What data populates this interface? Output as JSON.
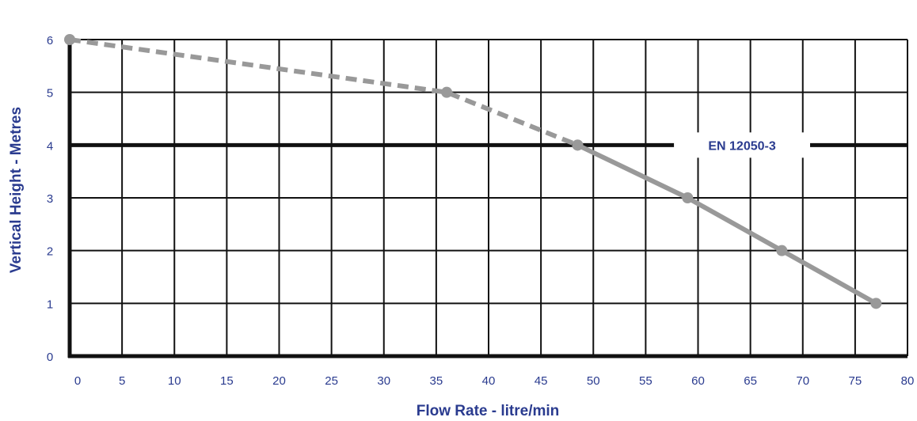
{
  "chart_data": {
    "type": "line",
    "title": "",
    "xlabel": "Flow Rate - litre/min",
    "ylabel": "Vertical Height - Metres",
    "xlim": [
      0,
      80
    ],
    "ylim": [
      0,
      6
    ],
    "x_ticks": [
      "0",
      "5",
      "10",
      "15",
      "20",
      "25",
      "30",
      "35",
      "40",
      "45",
      "50",
      "55",
      "60",
      "65",
      "70",
      "75",
      "80"
    ],
    "y_ticks": [
      "0",
      "1",
      "2",
      "3",
      "4",
      "5",
      "6"
    ],
    "grid": true,
    "series": [
      {
        "style": "dashed",
        "color": "#999999",
        "points": [
          {
            "x": 0,
            "y": 6
          },
          {
            "x": 36,
            "y": 5
          },
          {
            "x": 48.5,
            "y": 4
          }
        ]
      },
      {
        "style": "solid",
        "color": "#999999",
        "points": [
          {
            "x": 48.5,
            "y": 4
          },
          {
            "x": 59,
            "y": 3
          },
          {
            "x": 68,
            "y": 2
          },
          {
            "x": 77,
            "y": 1
          }
        ]
      }
    ],
    "reference_line": {
      "y": 4,
      "label": "EN 12050-3",
      "color": "#111111"
    },
    "colors": {
      "text": "#2a3b8f",
      "grid": "#111111",
      "curve": "#999999"
    }
  }
}
